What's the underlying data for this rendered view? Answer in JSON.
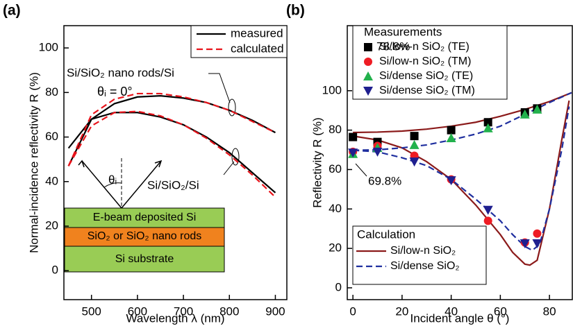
{
  "chart_data": [
    {
      "type": "line",
      "title": "(a)",
      "xlabel": "Wavelength λ (nm)",
      "ylabel": "Normal-incidence reflectivity R (%)",
      "xlim": [
        440,
        925
      ],
      "ylim": [
        -13,
        110
      ],
      "xticks": [
        500,
        600,
        700,
        800,
        900
      ],
      "yticks": [
        0,
        20,
        40,
        60,
        80,
        100
      ],
      "legend_loc": "upper right",
      "x": [
        450,
        500,
        550,
        600,
        650,
        700,
        750,
        800,
        850,
        900
      ],
      "curve_labels": [
        "Si/SiO₂ nano rods/Si",
        "Si/SiO₂/Si"
      ],
      "series": [
        {
          "name": "measured",
          "color": "#000000",
          "dash": false,
          "curves": [
            [
              47,
              68,
              75,
              78,
              78.5,
              77.5,
              75.5,
              72,
              67.5,
              62
            ],
            [
              55,
              68,
              71,
              71,
              69,
              65.5,
              60,
              53,
              44,
              35
            ]
          ]
        },
        {
          "name": "calculated",
          "color": "#e8141b",
          "dash": true,
          "curves": [
            [
              47,
              70,
              77,
              79.5,
              79.5,
              78,
              75.5,
              72,
              67,
              62
            ],
            [
              47,
              65,
              71,
              71.5,
              69.5,
              65.5,
              59.5,
              52,
              43,
              33
            ]
          ]
        }
      ],
      "annotations": [
        "θᵢ = 0°",
        "θᵢ",
        "E-beam deposited Si",
        "SiO₂ or SiO₂ nano rods",
        "Si substrate"
      ]
    },
    {
      "type": "scatter",
      "title": "(b)",
      "xlabel": "Incident angle  θ  (°)",
      "ylabel": "Reflectivity  R  (%)",
      "xlim": [
        -2.3,
        89.3
      ],
      "ylim": [
        -6,
        133
      ],
      "xticks": [
        0,
        20,
        40,
        60,
        80
      ],
      "yticks": [
        0,
        20,
        40,
        60,
        80,
        100
      ],
      "legend_titles": [
        "Measurements",
        "Calculation"
      ],
      "series": [
        {
          "name": "Si/low-n SiO₂ (TE)",
          "color": "#000000",
          "marker": "square",
          "x": [
            0,
            10,
            25,
            40,
            55,
            70,
            75
          ],
          "values": [
            76.5,
            74,
            77,
            80,
            84,
            89,
            91
          ]
        },
        {
          "name": "Si/low-n SiO₂ (TM)",
          "color": "#ee1c24",
          "marker": "circle",
          "x": [
            0,
            10,
            25,
            40,
            55,
            70,
            75
          ],
          "values": [
            69,
            72,
            67,
            55,
            34,
            23,
            27.5
          ]
        },
        {
          "name": "Si/dense SiO₂ (TE)",
          "color": "#22b14c",
          "marker": "triangle-up",
          "x": [
            0,
            10,
            25,
            40,
            55,
            70,
            75
          ],
          "values": [
            68,
            71,
            72.5,
            76,
            81,
            88,
            90.5
          ]
        },
        {
          "name": "Si/dense SiO₂ (TM)",
          "color": "#1f1f8f",
          "marker": "triangle-down",
          "x": [
            0,
            10,
            25,
            40,
            55,
            70,
            75
          ],
          "values": [
            68.5,
            69,
            64,
            54.5,
            39.5,
            22.5,
            22.5
          ]
        }
      ],
      "lines": [
        {
          "name": "Si/low-n SiO₂",
          "color": "#8b1a1a",
          "dash": false,
          "curves": [
            {
              "x": [
                0,
                10,
                20,
                30,
                40,
                50,
                60,
                70,
                80,
                89
              ],
              "values": [
                78.8,
                79,
                79.5,
                80.5,
                82,
                84,
                87,
                90.5,
                94.5,
                99
              ]
            },
            {
              "x": [
                0,
                10,
                20,
                30,
                40,
                50,
                60,
                65,
                70,
                72,
                75,
                80,
                85,
                88
              ],
              "values": [
                77,
                75,
                71,
                64,
                55,
                42,
                27,
                18,
                12,
                11.5,
                14,
                40,
                75,
                95
              ]
            }
          ]
        },
        {
          "name": "Si/dense SiO₂",
          "color": "#1f2f9f",
          "dash": true,
          "curves": [
            {
              "x": [
                0,
                10,
                20,
                30,
                40,
                50,
                60,
                70,
                80,
                89
              ],
              "values": [
                69.8,
                70,
                71,
                72.5,
                75,
                78,
                82,
                88,
                94,
                99
              ]
            },
            {
              "x": [
                0,
                10,
                20,
                30,
                40,
                50,
                60,
                65,
                70,
                73,
                76,
                80,
                85,
                88
              ],
              "values": [
                69.8,
                69,
                66,
                62,
                55,
                45,
                34,
                27,
                21,
                19,
                22,
                40,
                70,
                92
              ]
            }
          ]
        }
      ],
      "annotations": [
        "78.8%",
        "69.8%"
      ]
    }
  ]
}
